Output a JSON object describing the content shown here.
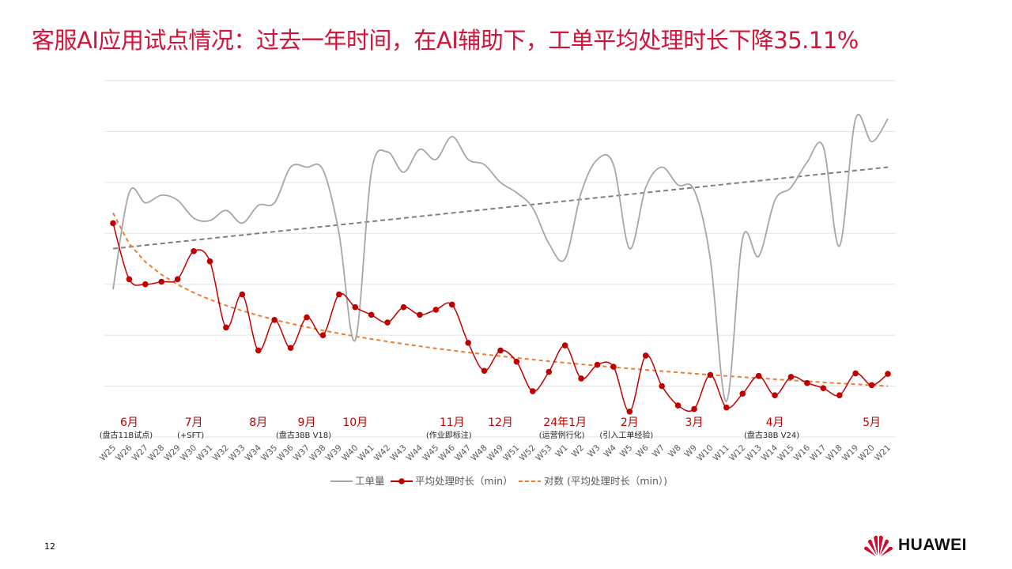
{
  "title": "客服AI应用试点情况：过去一年时间，在AI辅助下，工单平均处理时长下降35.11%",
  "page_number": "12",
  "brand": {
    "name": "HUAWEI"
  },
  "colors": {
    "title": "#d2143a",
    "volume": "#a6a6a6",
    "avg": "#c00000",
    "trend_log": "#ed7d31",
    "trend_linear": "#7f7f7f"
  },
  "chart_data": {
    "type": "line",
    "categories": [
      "W25",
      "W26",
      "W27",
      "W28",
      "W29",
      "W30",
      "W31",
      "W32",
      "W33",
      "W34",
      "W35",
      "W36",
      "W37",
      "W38",
      "W39",
      "W40",
      "W41",
      "W42",
      "W43",
      "W44",
      "W45",
      "W46",
      "W47",
      "W48",
      "W49",
      "W51",
      "W52",
      "W53",
      "W1",
      "W2",
      "W3",
      "W4",
      "W5",
      "W6",
      "W7",
      "W8",
      "W9",
      "W10",
      "W11",
      "W12",
      "W13",
      "W14",
      "W15",
      "W16",
      "W17",
      "W18",
      "W19",
      "W20",
      "W21"
    ],
    "y_axis_visible": false,
    "gridlines": true,
    "series": [
      {
        "name": "工单量",
        "style": "line",
        "smooth": true,
        "values": [
          2.4,
          4.3,
          4.1,
          4.25,
          4.15,
          3.8,
          3.75,
          3.95,
          3.7,
          4.05,
          4.1,
          4.8,
          4.8,
          4.75,
          3.5,
          1.4,
          4.7,
          5.1,
          4.7,
          5.15,
          4.95,
          5.4,
          4.95,
          4.85,
          4.5,
          4.3,
          4.0,
          3.3,
          3.0,
          4.3,
          4.95,
          4.85,
          3.2,
          4.4,
          4.8,
          4.45,
          4.35,
          3.0,
          0.2,
          3.4,
          3.05,
          4.15,
          4.4,
          4.9,
          5.2,
          3.25,
          5.75,
          5.3,
          5.75
        ]
      },
      {
        "name": "平均处理时长（min）",
        "style": "line-marker",
        "smooth": true,
        "values": [
          3.7,
          2.6,
          2.5,
          2.55,
          2.6,
          3.15,
          2.95,
          1.65,
          2.3,
          1.2,
          1.8,
          1.25,
          1.85,
          1.5,
          2.3,
          2.05,
          1.9,
          1.75,
          2.05,
          1.9,
          2.0,
          2.1,
          1.35,
          0.8,
          1.2,
          0.98,
          0.4,
          0.78,
          1.3,
          0.65,
          0.92,
          0.88,
          0.0,
          1.1,
          0.5,
          0.12,
          0.05,
          0.72,
          0.08,
          0.35,
          0.7,
          0.32,
          0.68,
          0.56,
          0.46,
          0.32,
          0.75,
          0.52,
          0.74
        ]
      },
      {
        "name": "对数 (平均处理时长（min）)",
        "style": "dashed-trend",
        "type": "logarithmic",
        "start_value": 3.9,
        "end_value": 0.5
      }
    ],
    "linear_trend_volume": {
      "style": "dashed-trend",
      "start_value": 3.2,
      "end_value": 4.8
    },
    "y_range": [
      -0.5,
      6.5
    ],
    "month_labels": [
      {
        "label": "6月",
        "at": "W26",
        "note": "(盘古11B试点)"
      },
      {
        "label": "7月",
        "at": "W30",
        "note": "(+SFT)"
      },
      {
        "label": "8月",
        "at": "W34",
        "note": ""
      },
      {
        "label": "9月",
        "at": "W37",
        "note": "(盘古38B V18)"
      },
      {
        "label": "10月",
        "at": "W40",
        "note": ""
      },
      {
        "label": "11月",
        "at": "W46",
        "note": "(作业即标注)"
      },
      {
        "label": "12月",
        "at": "W49",
        "note": ""
      },
      {
        "label": "24年1月",
        "at": "W1",
        "note": "(运营例行化)"
      },
      {
        "label": "2月",
        "at": "W5",
        "note": "(引入工单经验)"
      },
      {
        "label": "3月",
        "at": "W9",
        "note": ""
      },
      {
        "label": "4月",
        "at": "W14",
        "note": "(盘古38B V24)"
      },
      {
        "label": "5月",
        "at": "W20",
        "note": ""
      }
    ],
    "legend": {
      "position": "bottom",
      "items": [
        "工单量",
        "平均处理时长（min）",
        "对数 (平均处理时长（min）)"
      ]
    }
  }
}
